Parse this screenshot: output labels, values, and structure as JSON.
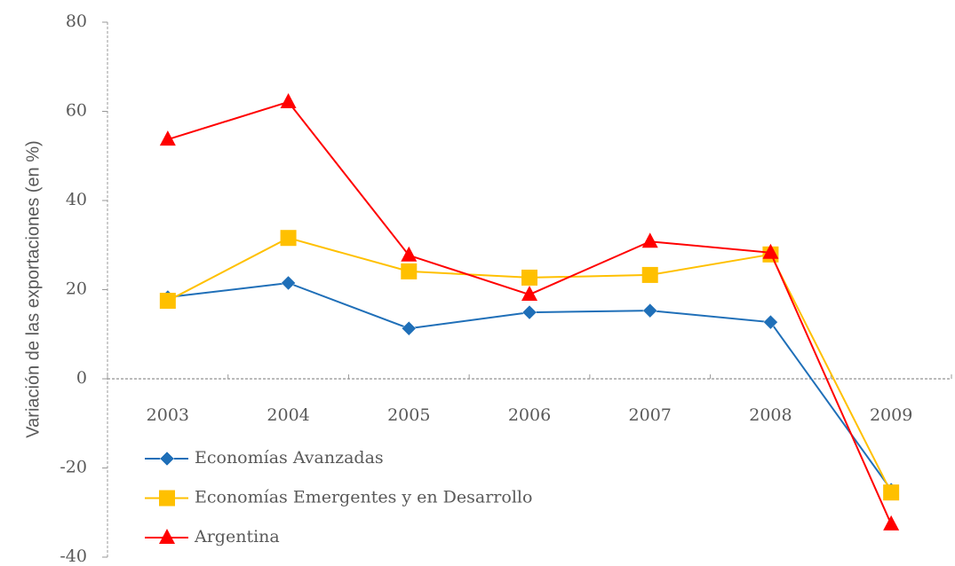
{
  "chart_data": {
    "type": "line",
    "ylabel": "Variación de las exportaciones (en %)",
    "categories": [
      "2003",
      "2004",
      "2005",
      "2006",
      "2007",
      "2008",
      "2009"
    ],
    "series": [
      {
        "name": "Economías Avanzadas",
        "color": "#1f6fb8",
        "marker": "diamond",
        "values": [
          18.3,
          21.5,
          11.3,
          14.9,
          15.3,
          12.7,
          -24.9
        ]
      },
      {
        "name": "Economías Emergentes y en Desarrollo",
        "color": "#ffc000",
        "marker": "square",
        "values": [
          17.5,
          31.6,
          24.1,
          22.7,
          23.3,
          27.9,
          -25.5
        ]
      },
      {
        "name": "Argentina",
        "color": "#ff0000",
        "marker": "triangle",
        "values": [
          53.7,
          62.1,
          27.7,
          18.9,
          30.8,
          28.3,
          -32.6
        ]
      }
    ],
    "ylim": [
      -40,
      80
    ],
    "yticks": [
      -40,
      -20,
      0,
      20,
      40,
      60,
      80
    ],
    "grid": false
  }
}
